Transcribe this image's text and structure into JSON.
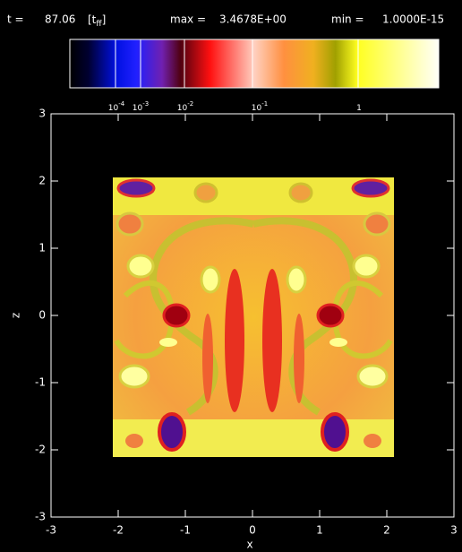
{
  "chart_data": {
    "type": "image",
    "header": {
      "time_label": "t =",
      "time": "87.06",
      "unit_prefix": "[t",
      "unit_subscript": "ff",
      "unit_suffix": "]",
      "max_label": "max =",
      "max": "3.4678E+00",
      "min_label": "min =",
      "min": "1.0000E-15"
    },
    "colorbar": {
      "ticks": [
        {
          "value": 0.0001,
          "label": "10",
          "exponent": "-4"
        },
        {
          "value": 0.001,
          "label": "10",
          "exponent": "-3"
        },
        {
          "value": 0.01,
          "label": "10",
          "exponent": "-2"
        },
        {
          "value": 0.1,
          "label": "10",
          "exponent": "-1"
        },
        {
          "value": 1,
          "label": "1"
        }
      ]
    },
    "x_label": "x",
    "y_label": "z",
    "xlim": [
      -3,
      3
    ],
    "ylim": [
      -3,
      3
    ],
    "xticks": [
      -3,
      -2,
      -1,
      0,
      1,
      2,
      3
    ],
    "yticks": [
      -3,
      -2,
      -1,
      0,
      1,
      2,
      3
    ],
    "image_extent": [
      -2.08,
      2.08,
      -2.08,
      2.08
    ]
  }
}
